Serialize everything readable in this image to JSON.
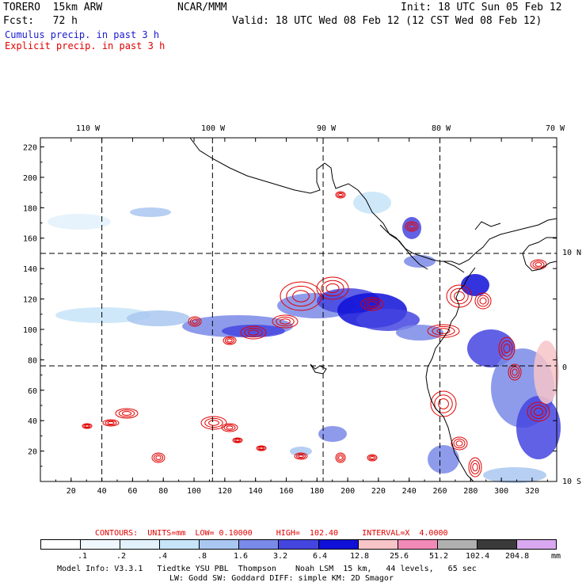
{
  "header": {
    "model": "TORERO  15km ARW",
    "org": "NCAR/MMM",
    "init": "Init: 18 UTC Sun 05 Feb 12",
    "fcst": "Fcst:   72 h",
    "valid": "Valid: 18 UTC Wed 08 Feb 12 (12 CST Wed 08 Feb 12)",
    "cumulus": "Cumulus precip. in past 3 h",
    "explicit": "Explicit precip. in past 3 h"
  },
  "map": {
    "lon_labels": [
      "110 W",
      "100 W",
      "90 W",
      "80 W",
      "70 W"
    ],
    "lat_labels": [
      "10 N",
      "0",
      "10 S"
    ],
    "y_ticks": [
      "220",
      "200",
      "180",
      "160",
      "140",
      "120",
      "100",
      "80",
      "60",
      "40",
      "20"
    ],
    "x_ticks": [
      "20",
      "40",
      "60",
      "80",
      "100",
      "120",
      "140",
      "160",
      "180",
      "200",
      "220",
      "240",
      "260",
      "280",
      "300",
      "320"
    ],
    "grid_x": [
      40,
      112,
      184,
      260
    ],
    "grid_y": [
      150,
      76
    ],
    "x_range": [
      0,
      336
    ],
    "y_range": [
      0,
      226
    ],
    "land_color": "#000000",
    "cumulus_color": "#1a1ad0",
    "explicit_color": "#e00000"
  },
  "footer": {
    "contours": "CONTOURS:  UNITS=mm  LOW= 0.10000     HIGH=  102.40     INTERVAL=X  4.0000",
    "legend_values": [
      ".1",
      ".2",
      ".4",
      ".8",
      "1.6",
      "3.2",
      "6.4",
      "12.8",
      "25.6",
      "51.2",
      "102.4",
      "204.8"
    ],
    "legend_colors": [
      "#ffffff",
      "#f0f8ff",
      "#e2f1fc",
      "#c7e4f8",
      "#a9c7f0",
      "#7a8ae8",
      "#4545e0",
      "#1010d8",
      "#f7c4c8",
      "#f28ab8",
      "#b0b0b0",
      "#3a3a3a",
      "#d9a8f0"
    ],
    "unit": "mm",
    "model_info_1": "Model Info: V3.3.1   Tiedtke YSU PBL  Thompson    Noah LSM  15 km,   44 levels,   65 sec",
    "model_info_2": "LW: Godd SW: Goddard DIFF: simple KM: 2D Smagor"
  }
}
